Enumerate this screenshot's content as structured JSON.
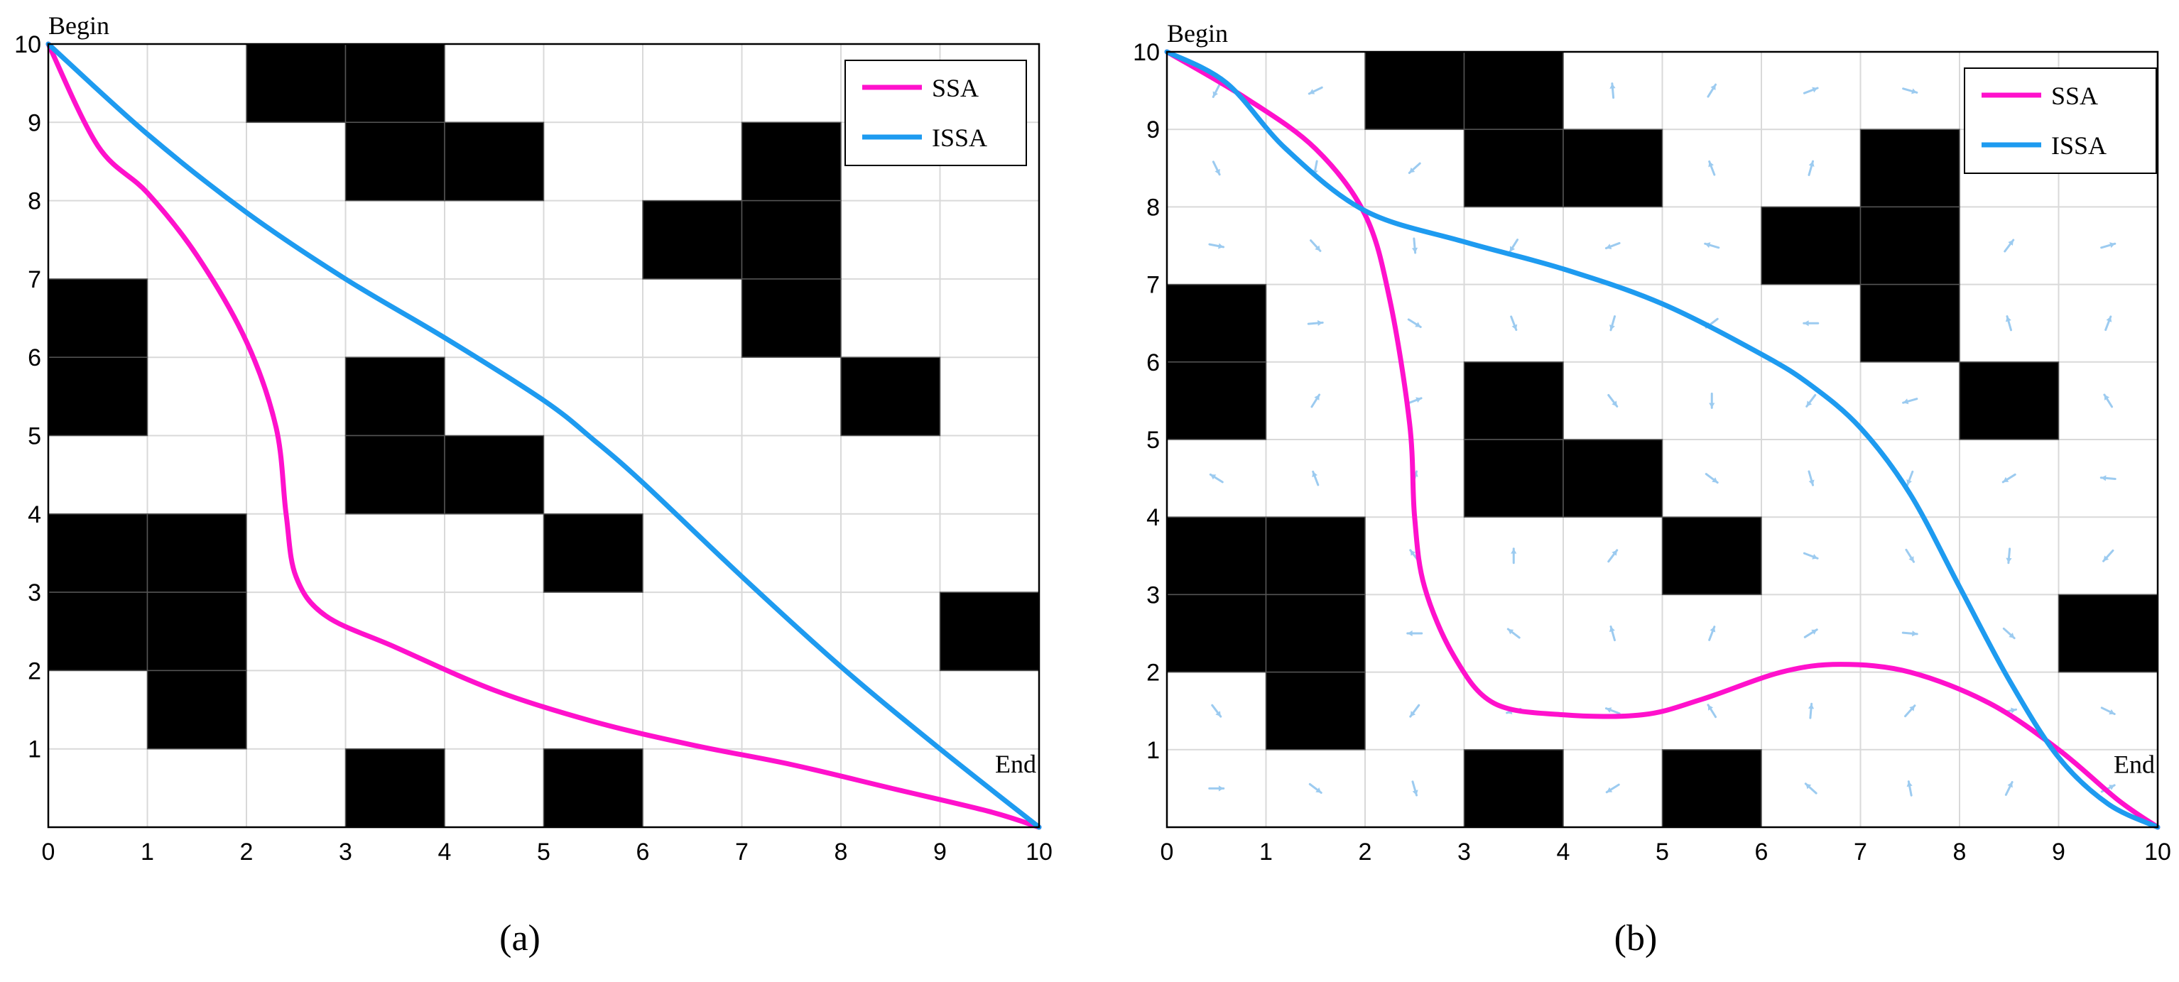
{
  "chart_data": [
    {
      "type": "line",
      "panel_label": "(a)",
      "xlim": [
        0,
        10
      ],
      "ylim": [
        0,
        10
      ],
      "xticks": [
        "0",
        "1",
        "2",
        "3",
        "4",
        "5",
        "6",
        "7",
        "8",
        "9",
        "10"
      ],
      "yticks": [
        "1",
        "2",
        "3",
        "4",
        "5",
        "6",
        "7",
        "8",
        "9",
        "10"
      ],
      "grid": true,
      "legend_position": "top-right",
      "annotations": {
        "start": "Begin",
        "end": "End"
      },
      "obstacles": [
        [
          2,
          9
        ],
        [
          3,
          9
        ],
        [
          3,
          8
        ],
        [
          4,
          8
        ],
        [
          7,
          8
        ],
        [
          6,
          7
        ],
        [
          7,
          7
        ],
        [
          0,
          6
        ],
        [
          7,
          6
        ],
        [
          0,
          5
        ],
        [
          3,
          5
        ],
        [
          8,
          5
        ],
        [
          3,
          4
        ],
        [
          4,
          4
        ],
        [
          0,
          3
        ],
        [
          1,
          3
        ],
        [
          5,
          3
        ],
        [
          0,
          2
        ],
        [
          1,
          2
        ],
        [
          9,
          2
        ],
        [
          1,
          1
        ],
        [
          3,
          0
        ],
        [
          5,
          0
        ]
      ],
      "series": [
        {
          "name": "SSA",
          "color": "#ff11cc",
          "x": [
            0,
            0.5,
            1.0,
            1.5,
            2.0,
            2.3,
            2.4,
            2.5,
            2.8,
            3.5,
            4.5,
            5.5,
            6.5,
            7.5,
            8.5,
            9.5,
            10
          ],
          "y": [
            10,
            8.7,
            8.1,
            7.3,
            6.2,
            5.1,
            4.0,
            3.2,
            2.7,
            2.3,
            1.75,
            1.35,
            1.05,
            0.8,
            0.5,
            0.2,
            0
          ]
        },
        {
          "name": "ISSA",
          "color": "#1e9bf0",
          "x": [
            0,
            1,
            2,
            3,
            4,
            5,
            5.5,
            6,
            7,
            8,
            9,
            10
          ],
          "y": [
            10,
            8.85,
            7.85,
            7.0,
            6.25,
            5.45,
            4.95,
            4.4,
            3.2,
            2.05,
            1.0,
            0
          ]
        }
      ]
    },
    {
      "type": "line",
      "panel_label": "(b)",
      "xlim": [
        0,
        10
      ],
      "ylim": [
        0,
        10
      ],
      "xticks": [
        "0",
        "1",
        "2",
        "3",
        "4",
        "5",
        "6",
        "7",
        "8",
        "9",
        "10"
      ],
      "yticks": [
        "1",
        "2",
        "3",
        "4",
        "5",
        "6",
        "7",
        "8",
        "9",
        "10"
      ],
      "grid": true,
      "legend_position": "top-right",
      "annotations": {
        "start": "Begin",
        "end": "End"
      },
      "flow_field": "light-blue arrows in free cells",
      "obstacles": [
        [
          2,
          9
        ],
        [
          3,
          9
        ],
        [
          3,
          8
        ],
        [
          4,
          8
        ],
        [
          7,
          8
        ],
        [
          6,
          7
        ],
        [
          7,
          7
        ],
        [
          0,
          6
        ],
        [
          7,
          6
        ],
        [
          0,
          5
        ],
        [
          3,
          5
        ],
        [
          8,
          5
        ],
        [
          3,
          4
        ],
        [
          4,
          4
        ],
        [
          0,
          3
        ],
        [
          1,
          3
        ],
        [
          5,
          3
        ],
        [
          0,
          2
        ],
        [
          1,
          2
        ],
        [
          9,
          2
        ],
        [
          1,
          1
        ],
        [
          3,
          0
        ],
        [
          5,
          0
        ]
      ],
      "series": [
        {
          "name": "SSA",
          "color": "#ff11cc",
          "x": [
            0,
            0.8,
            1.5,
            2.0,
            2.25,
            2.45,
            2.5,
            2.6,
            2.9,
            3.3,
            4.0,
            4.8,
            5.4,
            6.2,
            6.8,
            7.5,
            8.3,
            9.0,
            9.6,
            10
          ],
          "y": [
            10,
            9.4,
            8.75,
            7.9,
            6.8,
            5.2,
            4.0,
            3.1,
            2.2,
            1.6,
            1.45,
            1.45,
            1.65,
            2.0,
            2.1,
            2.0,
            1.6,
            1.0,
            0.35,
            0
          ]
        },
        {
          "name": "ISSA",
          "color": "#1e9bf0",
          "x": [
            0,
            0.6,
            1.2,
            2.0,
            3.0,
            4.0,
            5.0,
            6.0,
            6.5,
            7.0,
            7.5,
            8.0,
            8.5,
            9.0,
            9.5,
            10
          ],
          "y": [
            10,
            9.6,
            8.75,
            7.95,
            7.55,
            7.2,
            6.75,
            6.1,
            5.7,
            5.15,
            4.3,
            3.1,
            1.9,
            0.9,
            0.3,
            0
          ]
        }
      ]
    }
  ]
}
